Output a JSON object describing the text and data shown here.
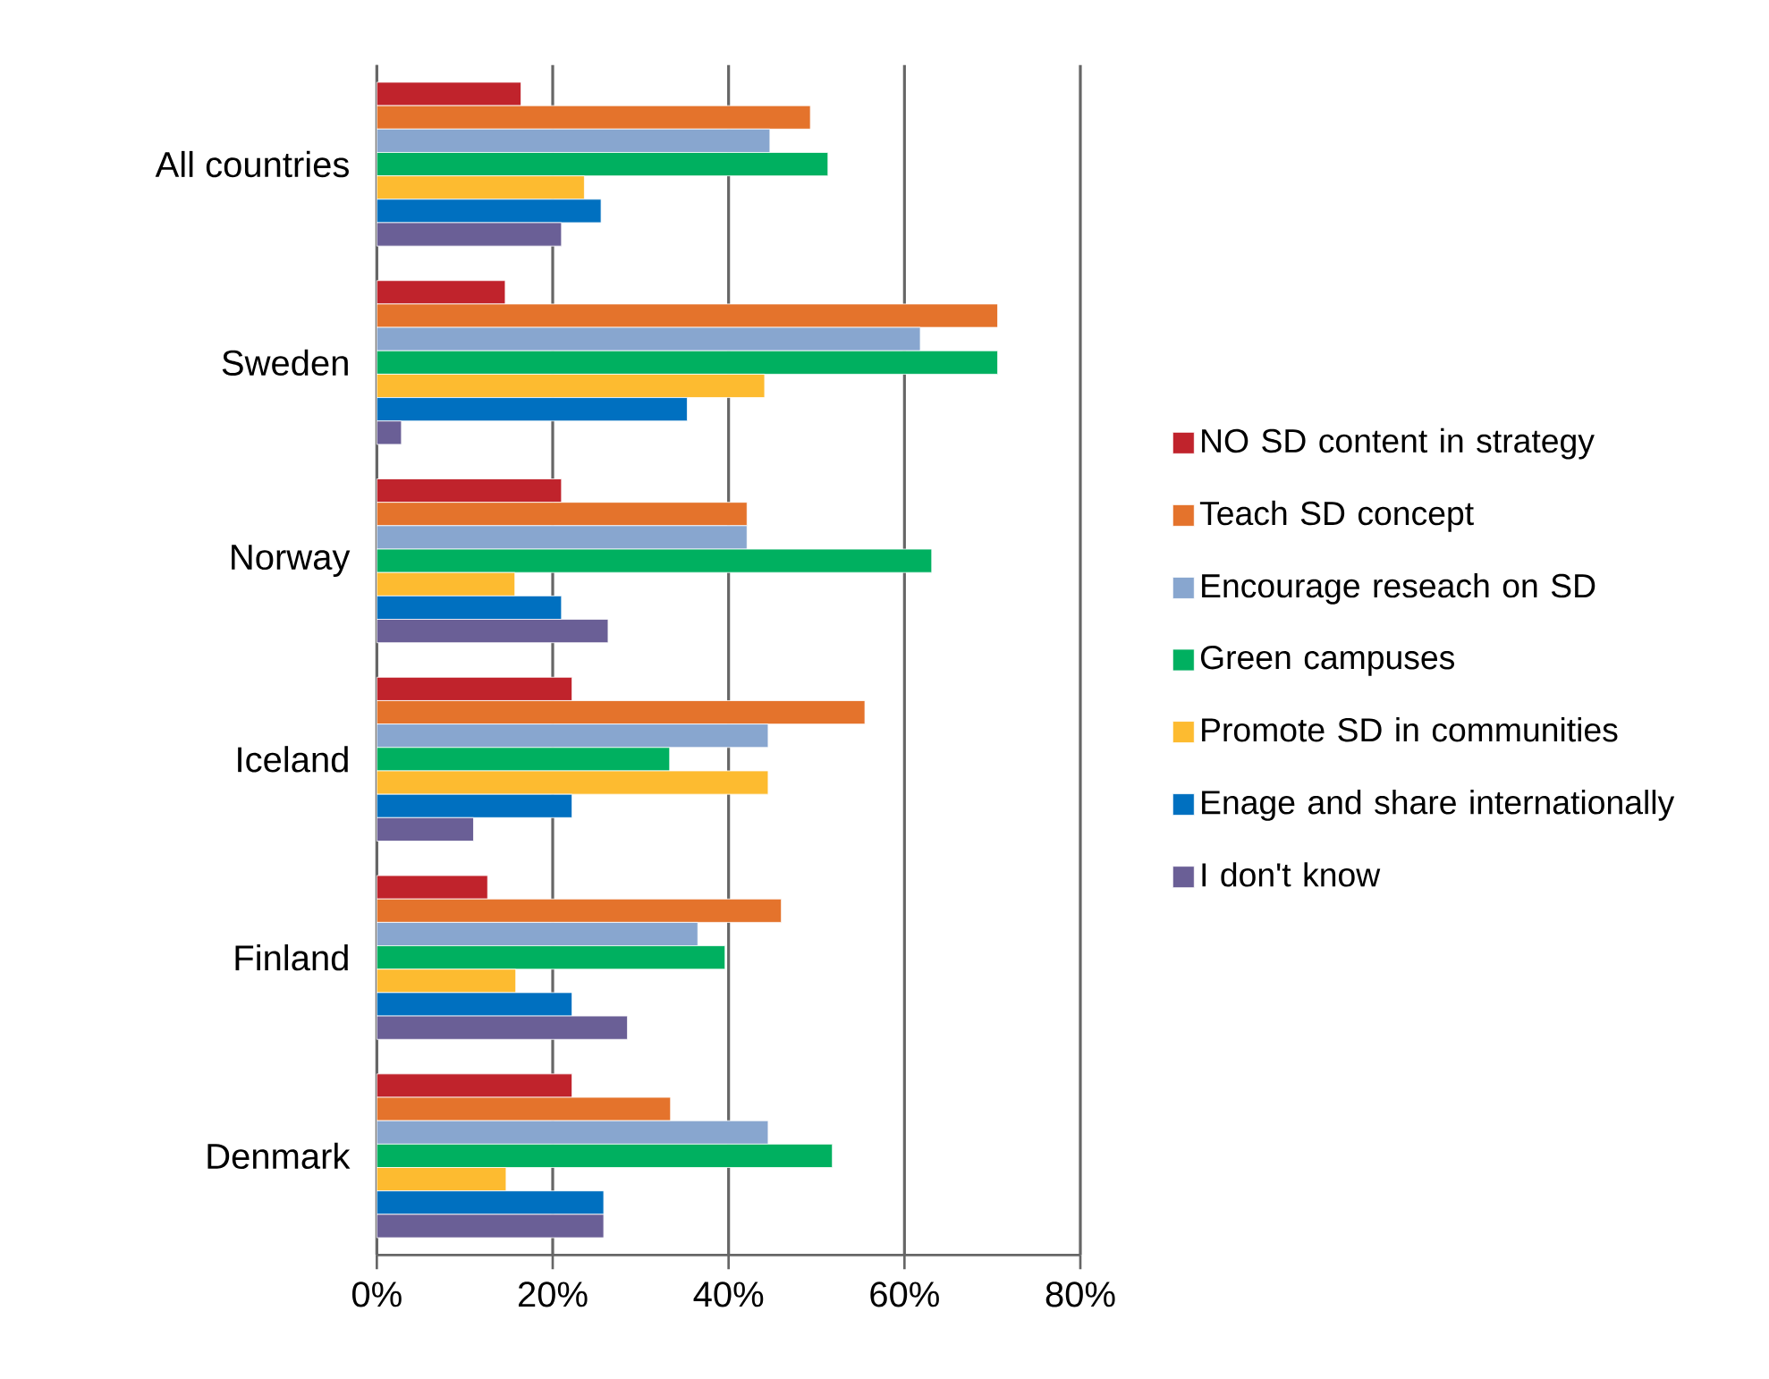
{
  "chart_data": {
    "type": "bar",
    "orientation": "horizontal",
    "categories": [
      "All countries",
      "Sweden",
      "Norway",
      "Iceland",
      "Finland",
      "Denmark"
    ],
    "series": [
      {
        "name": "NO SD content in strategy",
        "color": "#c0232c",
        "values": [
          16.4,
          14.6,
          21.0,
          22.2,
          12.6,
          22.2
        ]
      },
      {
        "name": "Teach SD concept",
        "color": "#e4732c",
        "values": [
          49.3,
          70.6,
          42.1,
          55.5,
          46.0,
          33.4
        ]
      },
      {
        "name": "Encourage reseach on SD",
        "color": "#88a6cf",
        "values": [
          44.7,
          61.8,
          42.1,
          44.5,
          36.5,
          44.5
        ]
      },
      {
        "name": "Green campuses",
        "color": "#00b060",
        "values": [
          51.3,
          70.6,
          63.1,
          33.3,
          39.6,
          51.8
        ]
      },
      {
        "name": "Promote SD in communities",
        "color": "#fdbb30",
        "values": [
          23.6,
          44.1,
          15.7,
          44.5,
          15.8,
          14.7
        ]
      },
      {
        "name": "Enage and share internationally",
        "color": "#0070c0",
        "values": [
          25.5,
          35.3,
          21.0,
          22.2,
          22.2,
          25.8
        ]
      },
      {
        "name": "I don't know",
        "color": "#6a5f96",
        "values": [
          21.0,
          2.8,
          26.3,
          11.0,
          28.5,
          25.8
        ]
      }
    ],
    "xlim": [
      0,
      80
    ],
    "xticks": [
      {
        "value": 0,
        "label": "0%"
      },
      {
        "value": 20,
        "label": "20%"
      },
      {
        "value": 40,
        "label": "40%"
      },
      {
        "value": 60,
        "label": "60%"
      },
      {
        "value": 80,
        "label": "80%"
      }
    ],
    "grid": "x",
    "legend": "right"
  }
}
